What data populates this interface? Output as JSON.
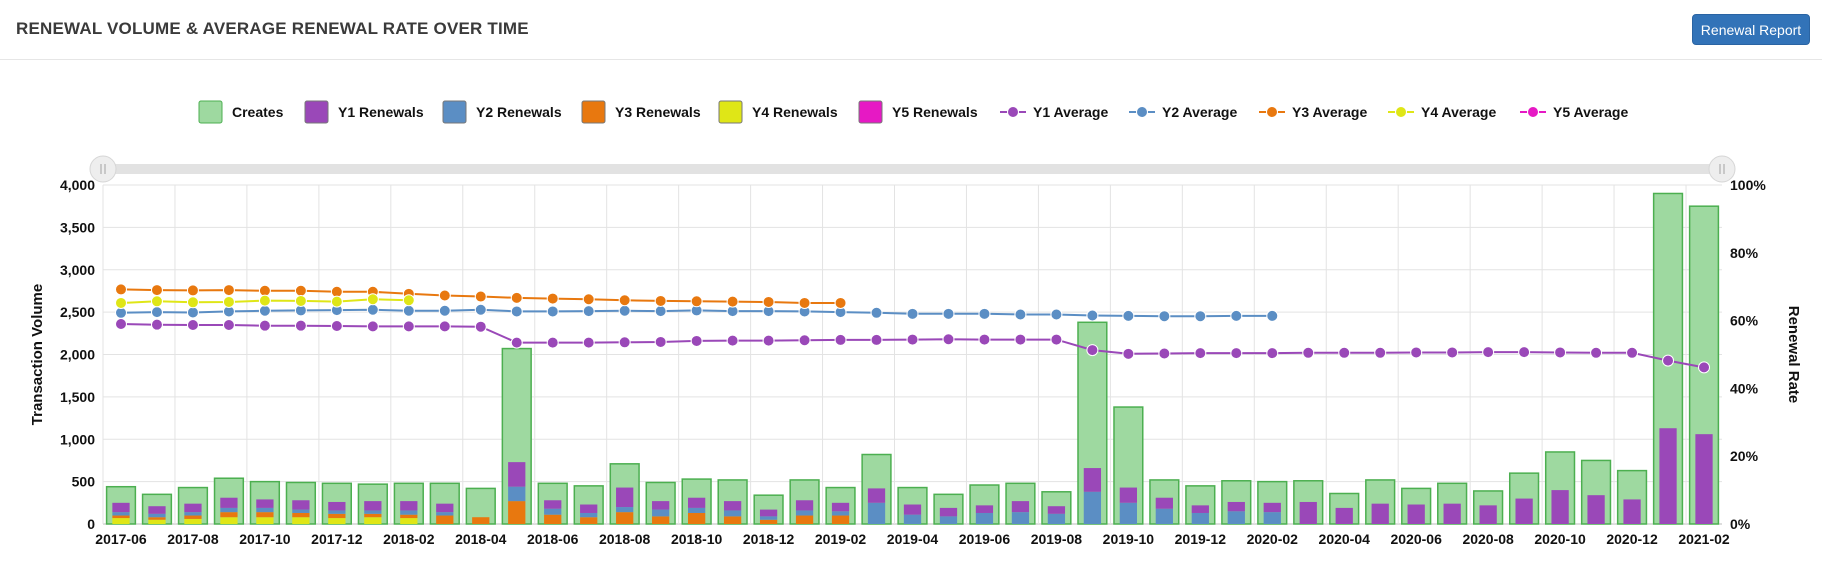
{
  "header": {
    "title": "RENEWAL VOLUME & AVERAGE RENEWAL RATE OVER TIME",
    "report_button": "Renewal Report"
  },
  "colors": {
    "creates_fill": "#9ed9a0",
    "creates_stroke": "#4caf50",
    "y1": "#9a48b8",
    "y2": "#5b8ec4",
    "y3": "#e8780f",
    "y4": "#dfe617",
    "y5": "#e619c4"
  },
  "chart_data": {
    "type": "bar",
    "title": "",
    "xlabel": "",
    "ylabel": "Transaction Volume",
    "ylabel_right": "Renewal Rate",
    "ylim": [
      0,
      4000
    ],
    "ylim_right": [
      0,
      100
    ],
    "yticks": [
      "0",
      "500",
      "1,000",
      "1,500",
      "2,000",
      "2,500",
      "3,000",
      "3,500",
      "4,000"
    ],
    "yticks_right": [
      "0%",
      "20%",
      "40%",
      "60%",
      "80%",
      "100%"
    ],
    "grid": true,
    "legend_position": "top-center",
    "range_slider": true,
    "categories": [
      "2017-06",
      "2017-07",
      "2017-08",
      "2017-09",
      "2017-10",
      "2017-11",
      "2017-12",
      "2018-01",
      "2018-02",
      "2018-03",
      "2018-04",
      "2018-05",
      "2018-06",
      "2018-07",
      "2018-08",
      "2018-09",
      "2018-10",
      "2018-11",
      "2018-12",
      "2019-01",
      "2019-02",
      "2019-03",
      "2019-04",
      "2019-05",
      "2019-06",
      "2019-07",
      "2019-08",
      "2019-09",
      "2019-10",
      "2019-11",
      "2019-12",
      "2020-01",
      "2020-02",
      "2020-03",
      "2020-04",
      "2020-05",
      "2020-06",
      "2020-07",
      "2020-08",
      "2020-09",
      "2020-10",
      "2020-11",
      "2020-12",
      "2021-01",
      "2021-02"
    ],
    "x_tick_labels": [
      "2017-06",
      "2017-08",
      "2017-10",
      "2017-12",
      "2018-02",
      "2018-04",
      "2018-06",
      "2018-08",
      "2018-10",
      "2018-12",
      "2019-02",
      "2019-04",
      "2019-06",
      "2019-08",
      "2019-10",
      "2019-12",
      "2020-02",
      "2020-04",
      "2020-06",
      "2020-08",
      "2020-10",
      "2020-12",
      "2021-02"
    ],
    "bar_series": [
      {
        "name": "Creates",
        "values": [
          440,
          350,
          430,
          540,
          500,
          490,
          480,
          470,
          480,
          480,
          420,
          2070,
          480,
          450,
          710,
          490,
          530,
          520,
          340,
          520,
          430,
          820,
          430,
          350,
          460,
          480,
          380,
          2380,
          1380,
          520,
          450,
          510,
          500,
          510,
          360,
          520,
          420,
          480,
          390,
          600,
          850,
          750,
          630,
          3900,
          3750
        ]
      },
      {
        "name": "Y1 Renewals",
        "values": [
          110,
          90,
          100,
          120,
          100,
          110,
          100,
          110,
          110,
          100,
          0,
          290,
          100,
          100,
          230,
          100,
          120,
          110,
          80,
          120,
          100,
          170,
          120,
          100,
          90,
          130,
          90,
          280,
          180,
          130,
          90,
          110,
          110,
          260,
          190,
          240,
          230,
          240,
          220,
          300,
          400,
          340,
          290,
          1130,
          1060
        ]
      },
      {
        "name": "Y2 Renewals",
        "values": [
          40,
          40,
          40,
          50,
          50,
          40,
          40,
          40,
          50,
          40,
          0,
          170,
          70,
          50,
          60,
          80,
          60,
          70,
          40,
          60,
          50,
          250,
          110,
          90,
          130,
          140,
          120,
          380,
          250,
          180,
          130,
          150,
          140,
          0,
          0,
          0,
          0,
          0,
          0,
          0,
          0,
          0,
          0,
          0,
          0
        ]
      },
      {
        "name": "Y3 Renewals",
        "values": [
          30,
          30,
          40,
          60,
          60,
          50,
          50,
          40,
          40,
          100,
          80,
          270,
          110,
          80,
          140,
          90,
          130,
          90,
          50,
          100,
          100,
          0,
          0,
          0,
          0,
          0,
          0,
          0,
          0,
          0,
          0,
          0,
          0,
          0,
          0,
          0,
          0,
          0,
          0,
          0,
          0,
          0,
          0,
          0,
          0
        ]
      },
      {
        "name": "Y4 Renewals",
        "values": [
          70,
          50,
          60,
          80,
          80,
          80,
          70,
          80,
          70,
          0,
          0,
          0,
          0,
          0,
          0,
          0,
          0,
          0,
          0,
          0,
          0,
          0,
          0,
          0,
          0,
          0,
          0,
          0,
          0,
          0,
          0,
          0,
          0,
          0,
          0,
          0,
          0,
          0,
          0,
          0,
          0,
          0,
          0,
          0,
          0
        ]
      },
      {
        "name": "Y5 Renewals",
        "values": [
          0,
          0,
          0,
          0,
          0,
          0,
          0,
          0,
          0,
          0,
          0,
          0,
          0,
          0,
          0,
          0,
          0,
          0,
          0,
          0,
          0,
          0,
          0,
          0,
          0,
          0,
          0,
          0,
          0,
          0,
          0,
          0,
          0,
          0,
          0,
          0,
          0,
          0,
          0,
          0,
          0,
          0,
          0,
          0,
          0
        ]
      }
    ],
    "line_series": [
      {
        "name": "Y1 Average",
        "values": [
          59,
          58.8,
          58.7,
          58.7,
          58.5,
          58.5,
          58.4,
          58.3,
          58.3,
          58.3,
          58.2,
          53.5,
          53.5,
          53.5,
          53.6,
          53.7,
          54,
          54.1,
          54.1,
          54.2,
          54.3,
          54.3,
          54.4,
          54.5,
          54.4,
          54.4,
          54.4,
          51.3,
          50.2,
          50.3,
          50.4,
          50.4,
          50.4,
          50.5,
          50.5,
          50.5,
          50.6,
          50.6,
          50.7,
          50.7,
          50.6,
          50.5,
          50.5,
          48.2,
          46.2
        ]
      },
      {
        "name": "Y2 Average",
        "values": [
          62.3,
          62.5,
          62.4,
          62.7,
          62.9,
          63.0,
          63.1,
          63.2,
          62.9,
          62.9,
          63.2,
          62.7,
          62.7,
          62.8,
          62.9,
          62.8,
          63.0,
          62.8,
          62.8,
          62.7,
          62.5,
          62.3,
          62.0,
          62.0,
          62.0,
          61.8,
          61.8,
          61.5,
          61.4,
          61.3,
          61.3,
          61.4,
          61.4,
          null,
          null,
          null,
          null,
          null,
          null,
          null,
          null,
          null,
          null,
          null,
          null
        ]
      },
      {
        "name": "Y3 Average",
        "values": [
          69.2,
          69.0,
          68.9,
          69.0,
          68.8,
          68.8,
          68.5,
          68.5,
          67.9,
          67.4,
          67.1,
          66.7,
          66.5,
          66.3,
          66.0,
          65.8,
          65.7,
          65.6,
          65.5,
          65.2,
          65.2,
          null,
          null,
          null,
          null,
          null,
          null,
          null,
          null,
          null,
          null,
          null,
          null,
          null,
          null,
          null,
          null,
          null,
          null,
          null,
          null,
          null,
          null,
          null,
          null
        ]
      },
      {
        "name": "Y4 Average",
        "values": [
          65.2,
          65.7,
          65.4,
          65.5,
          65.9,
          65.8,
          65.6,
          66.3,
          66.0,
          null,
          null,
          null,
          null,
          null,
          null,
          null,
          null,
          null,
          null,
          null,
          null,
          null,
          null,
          null,
          null,
          null,
          null,
          null,
          null,
          null,
          null,
          null,
          null,
          null,
          null,
          null,
          null,
          null,
          null,
          null,
          null,
          null,
          null,
          null,
          null
        ]
      },
      {
        "name": "Y5 Average",
        "values": []
      }
    ]
  }
}
